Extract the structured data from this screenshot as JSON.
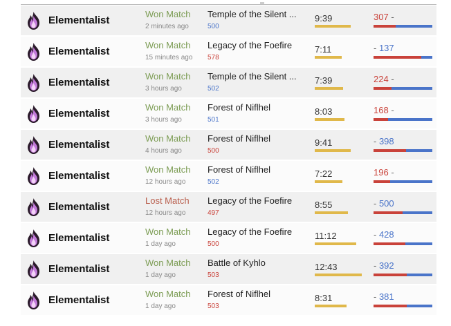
{
  "colors": {
    "won": "#7d9d55",
    "lost": "#b85c4a",
    "red_team": "#c9423a",
    "blue_team": "#4a74c9",
    "duration_bar": "#e0b84a"
  },
  "duration_bar_max_seconds": 780,
  "matches": [
    {
      "profession": "Elementalist",
      "icon": "elementalist-flame-icon",
      "result": "Won Match",
      "outcome": "won",
      "time_ago": "2 minutes ago",
      "map": "Temple of the Silent ...",
      "team": "Blue team",
      "team_color": "blue",
      "duration": "9:39",
      "red_score": "307",
      "blue_score": "500"
    },
    {
      "profession": "Elementalist",
      "icon": "elementalist-flame-icon",
      "result": "Won Match",
      "outcome": "won",
      "time_ago": "15 minutes ago",
      "map": "Legacy of the Foefire",
      "team": "Red team",
      "team_color": "red",
      "duration": "7:11",
      "red_score": "578",
      "blue_score": "137"
    },
    {
      "profession": "Elementalist",
      "icon": "elementalist-flame-icon",
      "result": "Won Match",
      "outcome": "won",
      "time_ago": "3 hours ago",
      "map": "Temple of the Silent ...",
      "team": "Blue team",
      "team_color": "blue",
      "duration": "7:39",
      "red_score": "224",
      "blue_score": "502"
    },
    {
      "profession": "Elementalist",
      "icon": "elementalist-flame-icon",
      "result": "Won Match",
      "outcome": "won",
      "time_ago": "3 hours ago",
      "map": "Forest of Niflhel",
      "team": "Blue team",
      "team_color": "blue",
      "duration": "8:03",
      "red_score": "168",
      "blue_score": "501"
    },
    {
      "profession": "Elementalist",
      "icon": "elementalist-flame-icon",
      "result": "Won Match",
      "outcome": "won",
      "time_ago": "4 hours ago",
      "map": "Forest of Niflhel",
      "team": "Red team",
      "team_color": "red",
      "duration": "9:41",
      "red_score": "500",
      "blue_score": "398"
    },
    {
      "profession": "Elementalist",
      "icon": "elementalist-flame-icon",
      "result": "Won Match",
      "outcome": "won",
      "time_ago": "12 hours ago",
      "map": "Forest of Niflhel",
      "team": "Blue team",
      "team_color": "blue",
      "duration": "7:22",
      "red_score": "196",
      "blue_score": "502"
    },
    {
      "profession": "Elementalist",
      "icon": "elementalist-flame-icon",
      "result": "Lost Match",
      "outcome": "lost",
      "time_ago": "12 hours ago",
      "map": "Legacy of the Foefire",
      "team": "Red team",
      "team_color": "red",
      "duration": "8:55",
      "red_score": "497",
      "blue_score": "500"
    },
    {
      "profession": "Elementalist",
      "icon": "elementalist-flame-icon",
      "result": "Won Match",
      "outcome": "won",
      "time_ago": "1 day ago",
      "map": "Legacy of the Foefire",
      "team": "Red team",
      "team_color": "red",
      "duration": "11:12",
      "red_score": "500",
      "blue_score": "428"
    },
    {
      "profession": "Elementalist",
      "icon": "elementalist-flame-icon",
      "result": "Won Match",
      "outcome": "won",
      "time_ago": "1 day ago",
      "map": "Battle of Kyhlo",
      "team": "Red team",
      "team_color": "red",
      "duration": "12:43",
      "red_score": "503",
      "blue_score": "392"
    },
    {
      "profession": "Elementalist",
      "icon": "elementalist-flame-icon",
      "result": "Won Match",
      "outcome": "won",
      "time_ago": "1 day ago",
      "map": "Forest of Niflhel",
      "team": "Red team",
      "team_color": "red",
      "duration": "8:31",
      "red_score": "503",
      "blue_score": "381"
    }
  ]
}
